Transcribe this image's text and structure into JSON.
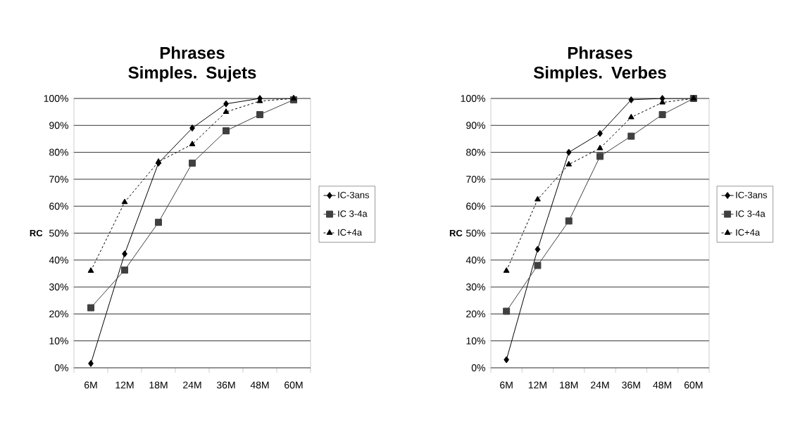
{
  "chart_data": [
    {
      "type": "line",
      "title": "Phrases Simples. Sujets",
      "ylabel": "RC",
      "categories": [
        "6M",
        "12M",
        "18M",
        "24M",
        "36M",
        "48M",
        "60M"
      ],
      "ylim": [
        0,
        100
      ],
      "yticks": [
        {
          "value": 0,
          "label": "0%"
        },
        {
          "value": 10,
          "label": "10%"
        },
        {
          "value": 20,
          "label": "20%"
        },
        {
          "value": 30,
          "label": "30%"
        },
        {
          "value": 40,
          "label": "40%"
        },
        {
          "value": 50,
          "label": "50%"
        },
        {
          "value": 60,
          "label": "60%"
        },
        {
          "value": 70,
          "label": "70%"
        },
        {
          "value": 80,
          "label": "80%"
        },
        {
          "value": 90,
          "label": "90%"
        },
        {
          "value": 100,
          "label": "100%"
        }
      ],
      "grid": "y",
      "legend": "right",
      "series": [
        {
          "name": "IC-3ans",
          "color": "#000000",
          "marker": "diamond",
          "line_style": "solid",
          "values": [
            1.6,
            42.3,
            76,
            89,
            98,
            100,
            100
          ]
        },
        {
          "name": "IC 3-4a",
          "color": "#404040",
          "marker": "square",
          "line_style": "solid",
          "values": [
            22.3,
            36.3,
            54,
            76,
            88,
            94,
            99.5
          ]
        },
        {
          "name": "IC+4a",
          "color": "#000000",
          "marker": "triangle",
          "line_style": "dashed",
          "values": [
            36,
            61.5,
            76.5,
            83,
            95,
            99,
            100
          ]
        }
      ]
    },
    {
      "type": "line",
      "title": "Phrases Simples. Verbes",
      "ylabel": "RC",
      "categories": [
        "6M",
        "12M",
        "18M",
        "24M",
        "36M",
        "48M",
        "60M"
      ],
      "ylim": [
        0,
        100
      ],
      "yticks": [
        {
          "value": 0,
          "label": "0%"
        },
        {
          "value": 10,
          "label": "10%"
        },
        {
          "value": 20,
          "label": "20%"
        },
        {
          "value": 30,
          "label": "30%"
        },
        {
          "value": 40,
          "label": "40%"
        },
        {
          "value": 50,
          "label": "50%"
        },
        {
          "value": 60,
          "label": "60%"
        },
        {
          "value": 70,
          "label": "70%"
        },
        {
          "value": 80,
          "label": "80%"
        },
        {
          "value": 90,
          "label": "90%"
        },
        {
          "value": 100,
          "label": "100%"
        }
      ],
      "grid": "y",
      "legend": "right",
      "series": [
        {
          "name": "IC-3ans",
          "color": "#000000",
          "marker": "diamond",
          "line_style": "solid",
          "values": [
            3,
            44,
            80,
            87,
            99.5,
            100,
            100
          ]
        },
        {
          "name": "IC 3-4a",
          "color": "#404040",
          "marker": "square",
          "line_style": "solid",
          "values": [
            21,
            38,
            54.5,
            78.5,
            86,
            94,
            100
          ]
        },
        {
          "name": "IC+4a",
          "color": "#000000",
          "marker": "triangle",
          "line_style": "dashed",
          "values": [
            36,
            62.5,
            75.5,
            81.5,
            93,
            98.5,
            100
          ]
        }
      ]
    }
  ]
}
